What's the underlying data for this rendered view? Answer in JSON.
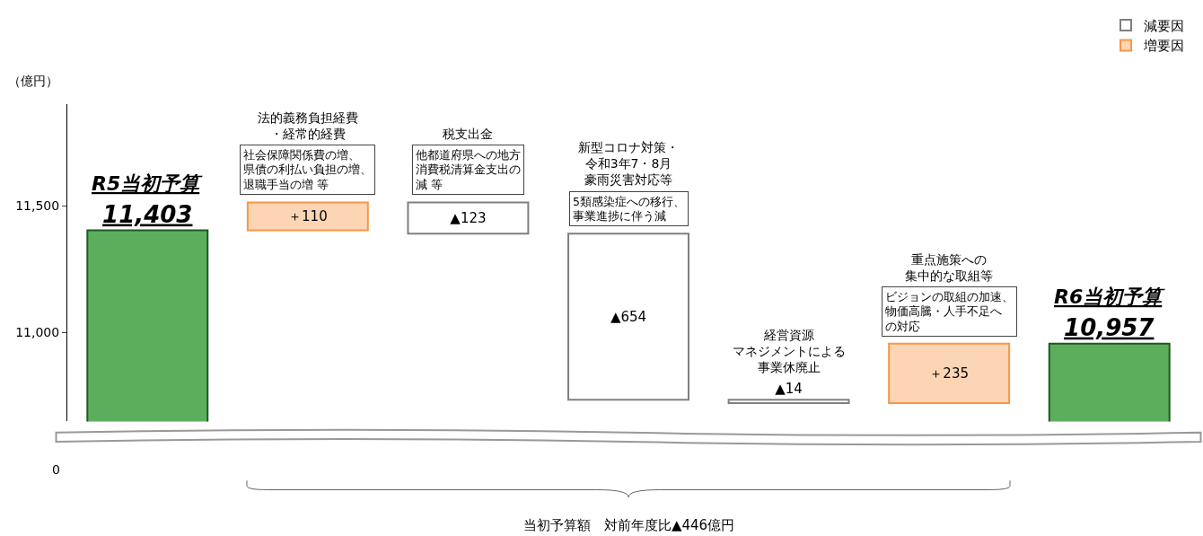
{
  "chart_data": {
    "type": "bar",
    "ylabel": "（億円）",
    "categories": [
      "R5当初予算",
      "法的義務負担経費・経常的経費",
      "税支出金",
      "新型コロナ対策・令和3年7・8月豪雨災害対応等",
      "経営資源マネジメントによる事業休廃止",
      "重点施策への集中的な取組等",
      "R6当初予算"
    ],
    "series": [
      {
        "color": "#5cae5c",
        "values": [
          11403,
          null,
          null,
          null,
          null,
          null,
          10957
        ],
        "base": [
          0,
          null,
          null,
          null,
          null,
          null,
          0
        ],
        "value_labels": [
          "11,403",
          null,
          null,
          null,
          null,
          null,
          "10,957"
        ]
      },
      {
        "name": "減要因",
        "color": "#ffffff",
        "values": [
          null,
          null,
          123,
          654,
          14,
          null,
          null
        ],
        "base": [
          null,
          null,
          11390,
          10736,
          10722,
          null,
          null
        ],
        "value_labels": [
          null,
          null,
          "▲123",
          "▲654",
          "▲14",
          null,
          null
        ]
      },
      {
        "name": "増要因",
        "color": "#fcd5b4",
        "values": [
          null,
          110,
          null,
          null,
          null,
          235,
          null
        ],
        "base": [
          null,
          11403,
          null,
          null,
          null,
          10722,
          null
        ],
        "value_labels": [
          null,
          "＋110",
          null,
          null,
          null,
          "＋235",
          null
        ]
      }
    ],
    "ylim": [
      10650,
      11900
    ],
    "yticks": [
      {
        "value": 11000,
        "label": "11,000"
      },
      {
        "value": 11500,
        "label": "11,500"
      }
    ],
    "annotations": [
      "社会保障関係費の増、県債の利払い負担の増、退職手当の増 等",
      "他都道府県への地方消費税清算金支出の減 等",
      "5類感染症への移行、事業進捗に伴う減",
      "ビジョンの取組の加速、物価高騰・人手不足への対応",
      "当初予算額　対前年度比▲446億円",
      "0"
    ],
    "legend": "top right",
    "grid": false
  }
}
